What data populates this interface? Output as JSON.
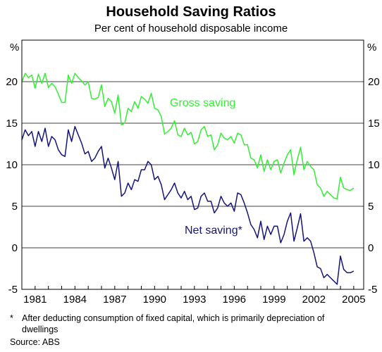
{
  "chart_data": {
    "type": "line",
    "title": "Household Saving Ratios",
    "subtitle": "Per cent of household disposable income",
    "ylabel_left": "%",
    "ylabel_right": "%",
    "ylim": [
      -5,
      25
    ],
    "yticks": [
      -5,
      0,
      5,
      10,
      15,
      20
    ],
    "xlim": [
      1980.0,
      2005.75
    ],
    "xticks": [
      1981,
      1984,
      1987,
      1990,
      1993,
      1996,
      1999,
      2002,
      2005
    ],
    "grid": "horizontal",
    "series": [
      {
        "name": "Gross saving",
        "color": "#33ee33",
        "points": [
          [
            1980.0,
            20.0
          ],
          [
            1980.25,
            21.0
          ],
          [
            1980.5,
            20.5
          ],
          [
            1980.75,
            20.8
          ],
          [
            1981.0,
            19.2
          ],
          [
            1981.25,
            20.9
          ],
          [
            1981.5,
            19.8
          ],
          [
            1981.75,
            21.0
          ],
          [
            1982.0,
            19.3
          ],
          [
            1982.25,
            19.8
          ],
          [
            1982.5,
            19.4
          ],
          [
            1982.75,
            18.5
          ],
          [
            1983.0,
            17.5
          ],
          [
            1983.25,
            17.5
          ],
          [
            1983.5,
            20.8
          ],
          [
            1983.75,
            19.8
          ],
          [
            1984.0,
            21.0
          ],
          [
            1984.25,
            20.5
          ],
          [
            1984.5,
            20.1
          ],
          [
            1984.75,
            19.6
          ],
          [
            1985.0,
            20.0
          ],
          [
            1985.25,
            18.0
          ],
          [
            1985.5,
            17.9
          ],
          [
            1985.75,
            18.1
          ],
          [
            1986.0,
            19.6
          ],
          [
            1986.25,
            17.0
          ],
          [
            1986.5,
            18.0
          ],
          [
            1986.75,
            17.6
          ],
          [
            1987.0,
            16.2
          ],
          [
            1987.25,
            18.4
          ],
          [
            1987.5,
            14.8
          ],
          [
            1987.75,
            15.0
          ],
          [
            1988.0,
            16.8
          ],
          [
            1988.25,
            16.4
          ],
          [
            1988.5,
            17.6
          ],
          [
            1988.75,
            16.8
          ],
          [
            1989.0,
            18.2
          ],
          [
            1989.25,
            17.9
          ],
          [
            1989.5,
            17.4
          ],
          [
            1989.75,
            18.6
          ],
          [
            1990.0,
            16.8
          ],
          [
            1990.25,
            16.6
          ],
          [
            1990.5,
            15.8
          ],
          [
            1990.75,
            13.7
          ],
          [
            1991.0,
            14.0
          ],
          [
            1991.25,
            14.4
          ],
          [
            1991.5,
            15.3
          ],
          [
            1991.75,
            13.6
          ],
          [
            1992.0,
            13.4
          ],
          [
            1992.25,
            14.4
          ],
          [
            1992.5,
            13.6
          ],
          [
            1992.75,
            13.9
          ],
          [
            1993.0,
            12.5
          ],
          [
            1993.25,
            12.8
          ],
          [
            1993.5,
            14.2
          ],
          [
            1993.75,
            14.6
          ],
          [
            1994.0,
            13.4
          ],
          [
            1994.25,
            13.6
          ],
          [
            1994.5,
            11.8
          ],
          [
            1994.75,
            12.4
          ],
          [
            1995.0,
            13.8
          ],
          [
            1995.25,
            13.2
          ],
          [
            1995.5,
            13.0
          ],
          [
            1995.75,
            13.4
          ],
          [
            1996.0,
            12.6
          ],
          [
            1996.25,
            13.8
          ],
          [
            1996.5,
            13.6
          ],
          [
            1996.75,
            12.4
          ],
          [
            1997.0,
            12.4
          ],
          [
            1997.25,
            10.8
          ],
          [
            1997.5,
            10.6
          ],
          [
            1997.75,
            9.6
          ],
          [
            1998.0,
            11.2
          ],
          [
            1998.25,
            9.2
          ],
          [
            1998.5,
            10.6
          ],
          [
            1998.75,
            9.4
          ],
          [
            1999.0,
            10.4
          ],
          [
            1999.25,
            10.6
          ],
          [
            1999.5,
            9.0
          ],
          [
            1999.75,
            10.2
          ],
          [
            2000.0,
            11.2
          ],
          [
            2000.25,
            11.8
          ],
          [
            2000.5,
            8.8
          ],
          [
            2000.75,
            10.6
          ],
          [
            2001.0,
            12.1
          ],
          [
            2001.25,
            9.4
          ],
          [
            2001.5,
            10.4
          ],
          [
            2001.75,
            9.8
          ],
          [
            2002.0,
            9.4
          ],
          [
            2002.25,
            7.6
          ],
          [
            2002.5,
            7.2
          ],
          [
            2002.75,
            6.2
          ],
          [
            2003.0,
            6.8
          ],
          [
            2003.25,
            6.4
          ],
          [
            2003.5,
            6.0
          ],
          [
            2003.75,
            5.9
          ],
          [
            2004.0,
            8.5
          ],
          [
            2004.25,
            7.2
          ],
          [
            2004.5,
            7.0
          ],
          [
            2004.75,
            6.9
          ],
          [
            2005.0,
            7.2
          ]
        ]
      },
      {
        "name": "Net saving*",
        "color": "#14147a",
        "points": [
          [
            1980.0,
            13.0
          ],
          [
            1980.25,
            14.2
          ],
          [
            1980.5,
            13.5
          ],
          [
            1980.75,
            14.0
          ],
          [
            1981.0,
            12.2
          ],
          [
            1981.25,
            14.0
          ],
          [
            1981.5,
            12.8
          ],
          [
            1981.75,
            14.4
          ],
          [
            1982.0,
            12.2
          ],
          [
            1982.25,
            13.4
          ],
          [
            1982.5,
            13.0
          ],
          [
            1982.75,
            11.8
          ],
          [
            1983.0,
            11.2
          ],
          [
            1983.25,
            11.0
          ],
          [
            1983.5,
            14.2
          ],
          [
            1983.75,
            12.8
          ],
          [
            1984.0,
            14.6
          ],
          [
            1984.25,
            13.6
          ],
          [
            1984.5,
            12.6
          ],
          [
            1984.75,
            11.3
          ],
          [
            1985.0,
            11.6
          ],
          [
            1985.25,
            10.4
          ],
          [
            1985.5,
            10.8
          ],
          [
            1985.75,
            11.6
          ],
          [
            1986.0,
            12.2
          ],
          [
            1986.25,
            9.6
          ],
          [
            1986.5,
            10.8
          ],
          [
            1986.75,
            9.6
          ],
          [
            1987.0,
            8.2
          ],
          [
            1987.25,
            10.4
          ],
          [
            1987.5,
            6.2
          ],
          [
            1987.75,
            6.6
          ],
          [
            1988.0,
            7.8
          ],
          [
            1988.25,
            7.0
          ],
          [
            1988.5,
            8.2
          ],
          [
            1988.75,
            8.0
          ],
          [
            1989.0,
            9.4
          ],
          [
            1989.25,
            9.4
          ],
          [
            1989.5,
            10.4
          ],
          [
            1989.75,
            10.0
          ],
          [
            1990.0,
            8.2
          ],
          [
            1990.25,
            8.6
          ],
          [
            1990.5,
            7.6
          ],
          [
            1990.75,
            5.8
          ],
          [
            1991.0,
            6.4
          ],
          [
            1991.25,
            7.0
          ],
          [
            1991.5,
            7.8
          ],
          [
            1991.75,
            6.6
          ],
          [
            1992.0,
            6.0
          ],
          [
            1992.25,
            6.8
          ],
          [
            1992.5,
            5.8
          ],
          [
            1992.75,
            6.2
          ],
          [
            1993.0,
            4.6
          ],
          [
            1993.25,
            4.8
          ],
          [
            1993.5,
            6.2
          ],
          [
            1993.75,
            6.6
          ],
          [
            1994.0,
            5.6
          ],
          [
            1994.25,
            5.6
          ],
          [
            1994.5,
            4.2
          ],
          [
            1994.75,
            4.8
          ],
          [
            1995.0,
            6.2
          ],
          [
            1995.25,
            5.4
          ],
          [
            1995.5,
            5.0
          ],
          [
            1995.75,
            5.4
          ],
          [
            1996.0,
            4.4
          ],
          [
            1996.25,
            6.6
          ],
          [
            1996.5,
            6.4
          ],
          [
            1996.75,
            5.4
          ],
          [
            1997.0,
            4.2
          ],
          [
            1997.25,
            2.8
          ],
          [
            1997.5,
            2.2
          ],
          [
            1997.75,
            1.2
          ],
          [
            1998.0,
            3.2
          ],
          [
            1998.25,
            1.0
          ],
          [
            1998.5,
            2.6
          ],
          [
            1998.75,
            1.6
          ],
          [
            1999.0,
            2.6
          ],
          [
            1999.25,
            2.6
          ],
          [
            1999.5,
            0.6
          ],
          [
            1999.75,
            1.6
          ],
          [
            2000.0,
            3.2
          ],
          [
            2000.25,
            4.2
          ],
          [
            2000.5,
            0.8
          ],
          [
            2000.75,
            2.4
          ],
          [
            2001.0,
            4.1
          ],
          [
            2001.25,
            0.8
          ],
          [
            2001.5,
            1.2
          ],
          [
            2001.75,
            0.8
          ],
          [
            2002.0,
            -0.6
          ],
          [
            2002.25,
            -2.3
          ],
          [
            2002.5,
            -2.5
          ],
          [
            2002.75,
            -3.6
          ],
          [
            2003.0,
            -3.2
          ],
          [
            2003.25,
            -3.6
          ],
          [
            2003.5,
            -4.0
          ],
          [
            2003.75,
            -4.4
          ],
          [
            2004.0,
            -1.0
          ],
          [
            2004.25,
            -2.6
          ],
          [
            2004.5,
            -3.0
          ],
          [
            2004.75,
            -3.0
          ],
          [
            2005.0,
            -2.8
          ]
        ]
      }
    ],
    "annotations": [
      {
        "text": "Gross saving",
        "series": 0
      },
      {
        "text": "Net saving*",
        "series": 1
      }
    ]
  },
  "footnote": {
    "mark": "*",
    "text": "After deducting consumption of fixed capital, which is primarily depreciation of dwellings"
  },
  "source": "Source: ABS"
}
